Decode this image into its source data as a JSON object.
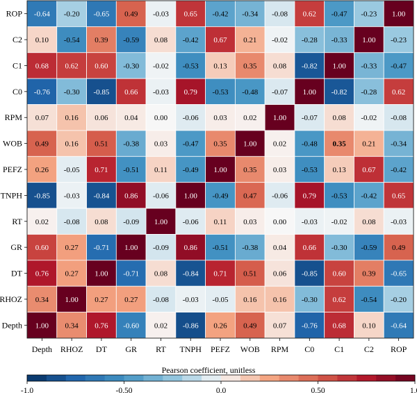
{
  "chart_data": {
    "type": "heatmap",
    "row_labels": [
      "ROP",
      "C2",
      "C1",
      "C0",
      "RPM",
      "WOB",
      "PEFZ",
      "TNPH",
      "RT",
      "GR",
      "DT",
      "RHOZ",
      "Depth"
    ],
    "col_labels": [
      "Depth",
      "RHOZ",
      "DT",
      "GR",
      "RT",
      "TNPH",
      "PEFZ",
      "WOB",
      "RPM",
      "C0",
      "C1",
      "C2",
      "ROP"
    ],
    "values": [
      [
        -0.64,
        -0.2,
        -0.65,
        0.49,
        -0.03,
        0.65,
        -0.42,
        -0.34,
        -0.08,
        0.62,
        -0.47,
        -0.23,
        1.0
      ],
      [
        0.1,
        -0.54,
        0.39,
        -0.59,
        0.08,
        -0.42,
        0.67,
        0.21,
        -0.02,
        -0.28,
        -0.33,
        1.0,
        -0.23
      ],
      [
        0.68,
        0.62,
        0.6,
        -0.3,
        -0.02,
        -0.53,
        0.13,
        0.35,
        0.08,
        -0.82,
        1.0,
        -0.33,
        -0.47
      ],
      [
        -0.76,
        -0.3,
        -0.85,
        0.66,
        -0.03,
        0.79,
        -0.53,
        -0.48,
        -0.07,
        1.0,
        -0.82,
        -0.28,
        0.62
      ],
      [
        0.07,
        0.16,
        0.06,
        0.04,
        0.0,
        -0.06,
        0.03,
        0.02,
        1.0,
        -0.07,
        0.08,
        -0.02,
        -0.08
      ],
      [
        0.49,
        0.16,
        0.51,
        -0.38,
        0.03,
        -0.47,
        0.35,
        1.0,
        0.02,
        -0.48,
        0.35,
        0.21,
        -0.34
      ],
      [
        0.26,
        -0.05,
        0.71,
        -0.51,
        0.11,
        -0.49,
        1.0,
        0.35,
        0.03,
        -0.53,
        0.13,
        0.67,
        -0.42
      ],
      [
        -0.85,
        -0.03,
        -0.84,
        0.86,
        -0.06,
        1.0,
        -0.49,
        0.47,
        -0.06,
        0.79,
        -0.53,
        -0.42,
        0.65
      ],
      [
        0.02,
        -0.08,
        0.08,
        -0.09,
        1.0,
        -0.06,
        0.11,
        0.03,
        0.0,
        -0.03,
        -0.02,
        0.08,
        -0.03
      ],
      [
        0.6,
        0.27,
        -0.71,
        1.0,
        -0.09,
        0.86,
        -0.51,
        -0.38,
        0.04,
        0.66,
        -0.3,
        -0.59,
        0.49
      ],
      [
        0.76,
        0.27,
        1.0,
        -0.71,
        0.08,
        -0.84,
        0.71,
        0.51,
        0.06,
        -0.85,
        0.6,
        0.39,
        -0.65
      ],
      [
        0.34,
        1.0,
        0.27,
        0.27,
        -0.08,
        -0.03,
        -0.05,
        0.16,
        0.16,
        -0.3,
        0.62,
        -0.54,
        -0.2
      ],
      [
        1.0,
        0.34,
        0.76,
        -0.6,
        0.02,
        -0.86,
        0.26,
        0.49,
        0.07,
        -0.76,
        0.68,
        0.1,
        -0.64
      ]
    ],
    "value_labels": [
      [
        "-0.64",
        "-0.20",
        "-0.65",
        "0.49",
        "-0.03",
        "0.65",
        "-0.42",
        "-0.34",
        "-0.08",
        "0.62",
        "-0.47",
        "-0.23",
        "1.00"
      ],
      [
        "0.10",
        "-0.54",
        "0.39",
        "-0.59",
        "0.08",
        "-0.42",
        "0.67",
        "0.21",
        "-0.02",
        "-0.28",
        "-0.33",
        "1.00",
        "-0.23"
      ],
      [
        "0.68",
        "0.62",
        "0.60",
        "-0.30",
        "-0.02",
        "-0.53",
        "0.13",
        "0.35",
        "0.08",
        "-0.82",
        "1.00",
        "-0.33",
        "-0.47"
      ],
      [
        "-0.76",
        "-0.30",
        "-0.85",
        "0.66",
        "-0.03",
        "0.79",
        "-0.53",
        "-0.48",
        "-0.07",
        "1.00",
        "-0.82",
        "-0.28",
        "0.62"
      ],
      [
        "0.07",
        "0.16",
        "0.06",
        "0.04",
        "0.00",
        "-0.06",
        "0.03",
        "0.02",
        "1.00",
        "-0.07",
        "0.08",
        "-0.02",
        "-0.08"
      ],
      [
        "0.49",
        "0.16",
        "0.51",
        "-0.38",
        "0.03",
        "-0.47",
        "0.35",
        "1.00",
        "0.02",
        "-0.48",
        "0.35",
        "0.21",
        "-0.34"
      ],
      [
        "0.26",
        "-0.05",
        "0.71",
        "-0.51",
        "0.11",
        "-0.49",
        "1.00",
        "0.35",
        "0.03",
        "-0.53",
        "0.13",
        "0.67",
        "-0.42"
      ],
      [
        "-0.85",
        "-0.03",
        "-0.84",
        "0.86",
        "-0.06",
        "1.00",
        "-0.49",
        "0.47",
        "-0.06",
        "0.79",
        "-0.53",
        "-0.42",
        "0.65"
      ],
      [
        "0.02",
        "-0.08",
        "0.08",
        "-0.09",
        "1.00",
        "-0.06",
        "0.11",
        "0.03",
        "0.00",
        "-0.03",
        "-0.02",
        "0.08",
        "-0.03"
      ],
      [
        "0.60",
        "0.27",
        "-0.71",
        "1.00",
        "-0.09",
        "0.86",
        "-0.51",
        "-0.38",
        "0.04",
        "0.66",
        "-0.30",
        "-0.59",
        "0.49"
      ],
      [
        "0.76",
        "0.27",
        "1.00",
        "-0.71",
        "0.08",
        "-0.84",
        "0.71",
        "0.51",
        "0.06",
        "-0.85",
        "0.60",
        "0.39",
        "-0.65"
      ],
      [
        "0.34",
        "1.00",
        "0.27",
        "0.27",
        "-0.08",
        "-0.03",
        "-0.05",
        "0.16",
        "0.16",
        "-0.30",
        "0.62",
        "-0.54",
        "-0.20"
      ],
      [
        "1.00",
        "0.34",
        "0.76",
        "-0.60",
        "0.02",
        "-0.86",
        "0.26",
        "0.49",
        "0.07",
        "-0.76",
        "0.68",
        "0.10",
        "-0.64"
      ]
    ],
    "bold_cells": [
      [
        5,
        10
      ]
    ],
    "colormap": "RdBu_r",
    "vmin": -1.0,
    "vmax": 1.0,
    "colorbar": {
      "label": "Pearson coefficient, unitless",
      "orientation": "horizontal",
      "position": "bottom",
      "ticks": [
        -1.0,
        -0.5,
        0.0,
        0.5,
        1.0
      ],
      "tick_labels": [
        "-1.0",
        "-0.50",
        "0.0",
        "0.50",
        "1.0"
      ]
    },
    "colors": {
      "neg_extreme": "#053061",
      "neg_mid": "#4393c3",
      "neutral": "#f7f7f7",
      "pos_mid": "#f4a582",
      "pos_extreme": "#67001f"
    },
    "grid": true
  }
}
